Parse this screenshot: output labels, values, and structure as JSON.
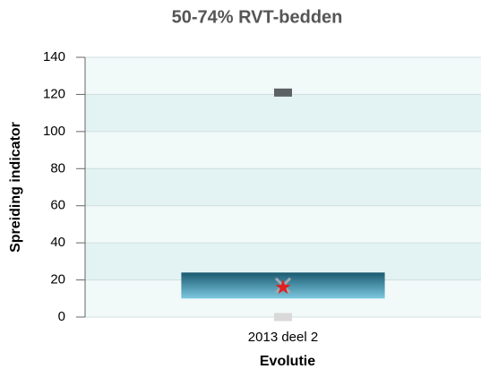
{
  "chart_data": {
    "type": "boxplot",
    "title": "50-74% RVT-bedden",
    "x_label": "Evolutie",
    "y_label": "Spreiding indicator",
    "categories": [
      "2013 deel 2"
    ],
    "min": [
      0
    ],
    "q1": [
      10
    ],
    "q3": [
      24
    ],
    "max": [
      121
    ],
    "median": [
      17
    ],
    "value": [
      16
    ],
    "ylim": [
      0,
      140
    ],
    "yticks": [
      0,
      20,
      40,
      60,
      80,
      100,
      120,
      140
    ],
    "box_colors": [
      "#1b5a70",
      "#7cc8e0"
    ],
    "max_color": "#5c6164",
    "min_color": "#d9d9d9",
    "value_color": "#e02020",
    "median_color": "#a0a8b0",
    "band_colors": [
      "#f2f9f9",
      "#e3f3f3"
    ],
    "grid": true
  }
}
